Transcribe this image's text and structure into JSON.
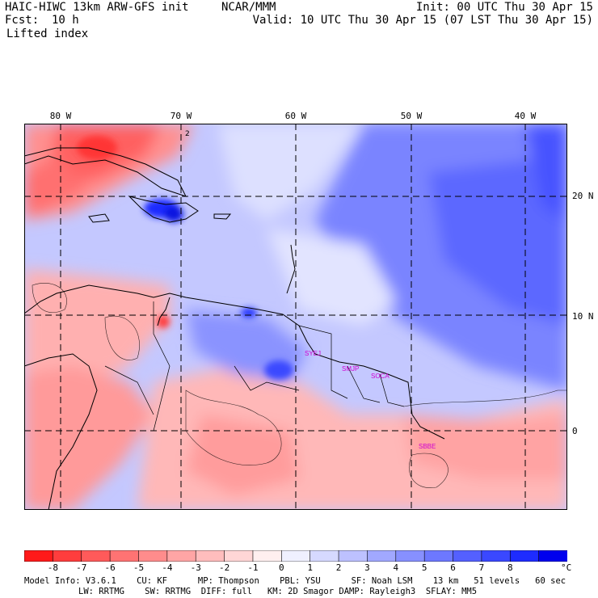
{
  "header": {
    "model": "HAIC-HIWC 13km ARW-GFS init",
    "org": "NCAR/MMM",
    "fcst_label": "Fcst:",
    "fcst_value": "10 h",
    "field": "Lifted index",
    "init": "Init: 00 UTC Thu 30 Apr 15",
    "valid": "Valid: 10 UTC Thu 30 Apr 15 (07 LST Thu 30 Apr 15)"
  },
  "map": {
    "lon_labels": [
      "80 W",
      "70 W",
      "60 W",
      "50 W",
      "40 W"
    ],
    "lat_labels": [
      "20 N",
      "10 N",
      "0"
    ],
    "station_labels": [
      "SYEJ",
      "SMJP",
      "SOCA",
      "SBBE"
    ],
    "contour_label": "2"
  },
  "colorbar": {
    "ticks": [
      "-8",
      "-7",
      "-6",
      "-5",
      "-4",
      "-3",
      "-2",
      "-1",
      "0",
      "1",
      "2",
      "3",
      "4",
      "5",
      "6",
      "7",
      "8"
    ],
    "unit": "°C",
    "colors": [
      "#ff1a1a",
      "#ff3d3d",
      "#ff5a5a",
      "#ff7373",
      "#ff8c8c",
      "#ffa5a5",
      "#ffbdbd",
      "#ffd6d6",
      "#ffefef",
      "#eff0ff",
      "#d6d9ff",
      "#bdc1ff",
      "#a1a8ff",
      "#8790ff",
      "#6d78ff",
      "#5460ff",
      "#3a48ff",
      "#1e2cff",
      "#0000ee"
    ]
  },
  "footer": {
    "line1": "Model Info: V3.6.1    CU: KF      MP: Thompson    PBL: YSU      SF: Noah LSM    13 km   51 levels   60 sec",
    "line2": "LW: RRTMG    SW: RRTMG  DIFF: full   KM: 2D Smagor DAMP: Rayleigh3  SFLAY: MM5"
  }
}
